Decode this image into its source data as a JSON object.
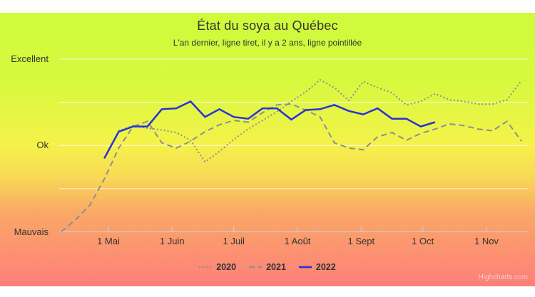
{
  "chart_data": {
    "type": "line",
    "title": "État du soya au Québec",
    "subtitle": "L'an dernier, ligne tiret, il y a 2 ans, ligne pointillée",
    "y_axis": {
      "kind": "quality-scale",
      "ticks": [
        {
          "label": "Excellent",
          "value": 2
        },
        {
          "label": "Ok",
          "value": 1
        },
        {
          "label": "Mauvais",
          "value": 0
        }
      ],
      "range": [
        0,
        2
      ],
      "gridlines_at": [
        0.5,
        1,
        1.5,
        2
      ]
    },
    "x_axis": {
      "unit": "days_since_may_1",
      "ticks": [
        {
          "label": "1 Mai",
          "day": 0
        },
        {
          "label": "1 Juin",
          "day": 31
        },
        {
          "label": "1 Juil",
          "day": 61
        },
        {
          "label": "1 Août",
          "day": 92
        },
        {
          "label": "1 Sept",
          "day": 123
        },
        {
          "label": "1 Oct",
          "day": 153
        },
        {
          "label": "1 Nov",
          "day": 184
        }
      ]
    },
    "series": [
      {
        "name": "2020",
        "line_style": "dotted",
        "color": "#8a9096",
        "width": 2,
        "days": [
          5,
          12,
          19,
          26,
          33,
          40,
          47,
          54,
          61,
          68,
          75,
          82,
          89,
          96,
          103,
          110,
          117,
          124,
          131,
          138,
          145,
          152,
          159,
          166,
          173,
          180,
          187,
          194,
          201
        ],
        "values": [
          1.17,
          1.23,
          1.2,
          1.18,
          1.15,
          1.06,
          0.81,
          0.93,
          1.07,
          1.19,
          1.29,
          1.39,
          1.51,
          1.62,
          1.76,
          1.67,
          1.52,
          1.74,
          1.67,
          1.61,
          1.47,
          1.51,
          1.6,
          1.53,
          1.51,
          1.48,
          1.48,
          1.53,
          1.75
        ]
      },
      {
        "name": "2021",
        "line_style": "dashed",
        "color": "#8a9096",
        "width": 2,
        "days": [
          -23,
          -16,
          -9,
          -2,
          5,
          12,
          19,
          26,
          33,
          40,
          47,
          54,
          61,
          68,
          75,
          82,
          89,
          96,
          103,
          110,
          117,
          124,
          131,
          138,
          145,
          152,
          159,
          166,
          173,
          180,
          187,
          194,
          201
        ],
        "values": [
          0.0,
          0.14,
          0.31,
          0.61,
          0.97,
          1.22,
          1.28,
          1.03,
          0.97,
          1.05,
          1.16,
          1.24,
          1.29,
          1.27,
          1.38,
          1.47,
          1.48,
          1.41,
          1.33,
          1.03,
          0.97,
          0.95,
          1.1,
          1.15,
          1.06,
          1.14,
          1.19,
          1.25,
          1.23,
          1.19,
          1.17,
          1.28,
          1.05
        ]
      },
      {
        "name": "2022",
        "line_style": "solid",
        "color": "#2632d9",
        "width": 2.5,
        "days": [
          -2,
          5,
          12,
          19,
          26,
          33,
          40,
          47,
          54,
          61,
          68,
          75,
          82,
          89,
          96,
          103,
          110,
          117,
          124,
          131,
          138,
          145,
          152,
          159
        ],
        "values": [
          0.85,
          1.16,
          1.22,
          1.22,
          1.42,
          1.43,
          1.51,
          1.33,
          1.42,
          1.33,
          1.31,
          1.43,
          1.43,
          1.3,
          1.41,
          1.42,
          1.47,
          1.4,
          1.36,
          1.43,
          1.31,
          1.31,
          1.22,
          1.27
        ]
      }
    ],
    "legend_position": "bottom-center",
    "background_gradient": [
      "#cffb3c",
      "#d6f93e",
      "#f5f24a",
      "#f8d955",
      "#faa866",
      "#fd7f7a"
    ],
    "gridline_color": "rgba(255,255,255,0.8)",
    "axis_line_color": "#c9d4dc"
  },
  "credits": "Highcharts.com"
}
